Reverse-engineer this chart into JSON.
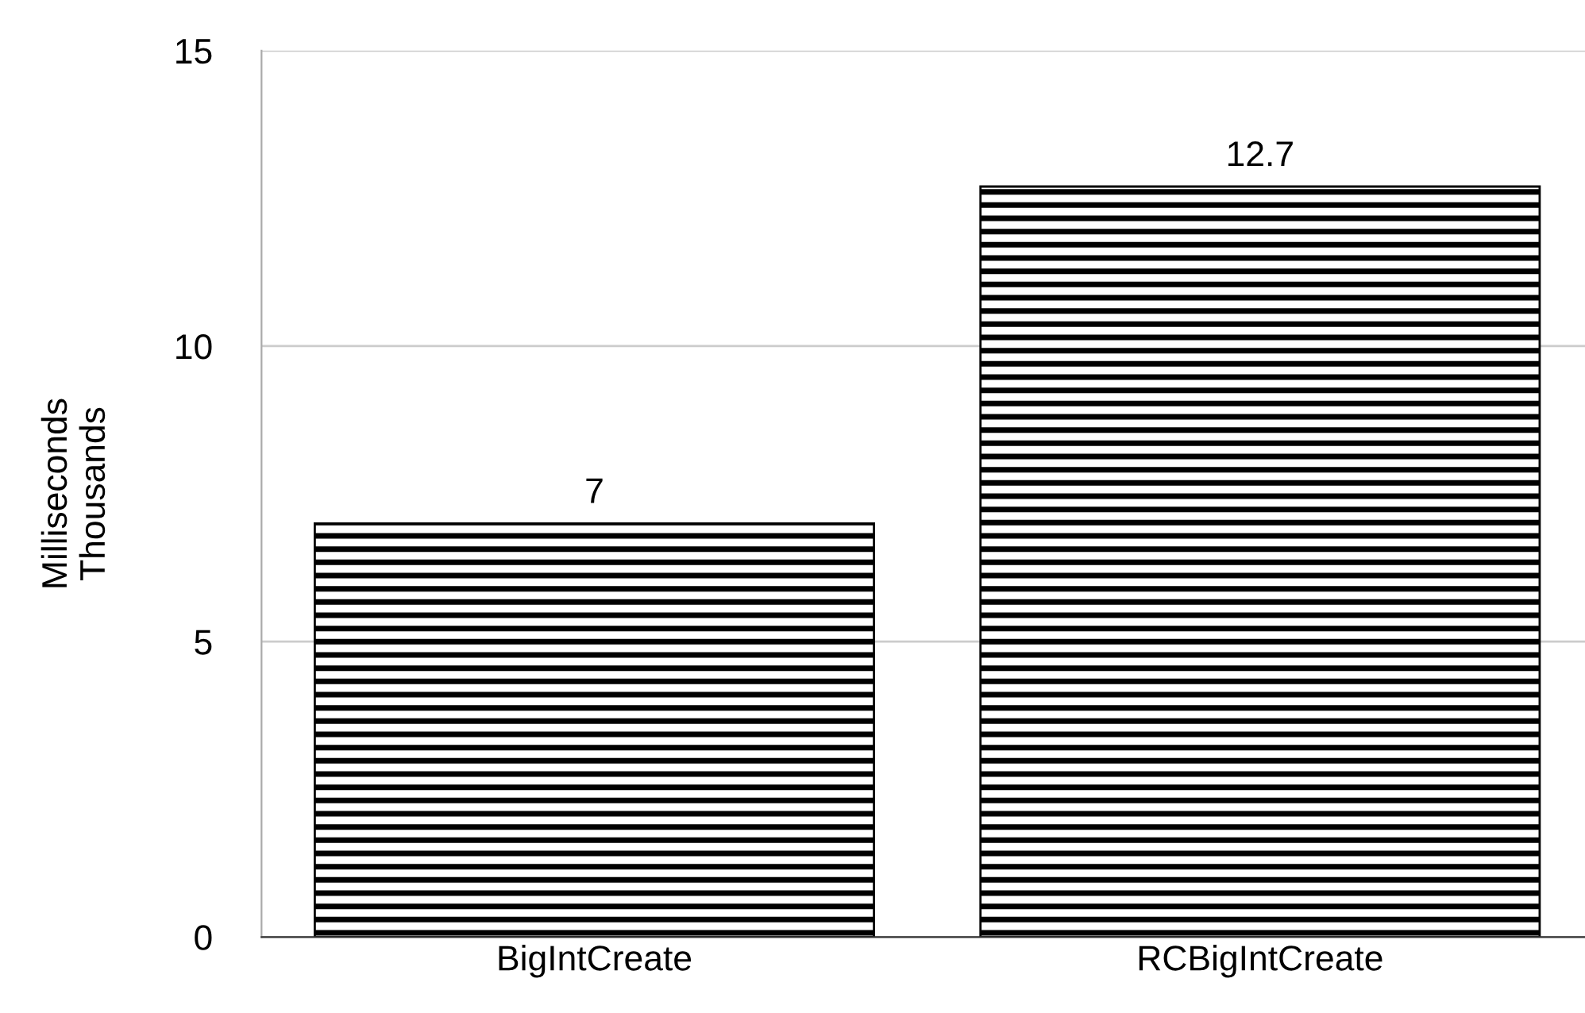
{
  "chart_data": {
    "type": "bar",
    "ylabel": "Milliseconds\nThousands",
    "categories": [
      "BigIntCreate",
      "RCBigIntCreate"
    ],
    "series": [
      {
        "color": "#000000",
        "values": [
          7,
          12.7
        ]
      }
    ],
    "ylim": [
      0,
      15
    ],
    "yticks": [
      0,
      5,
      10,
      15
    ],
    "grid": "y",
    "data_labels": true,
    "legend": false
  }
}
